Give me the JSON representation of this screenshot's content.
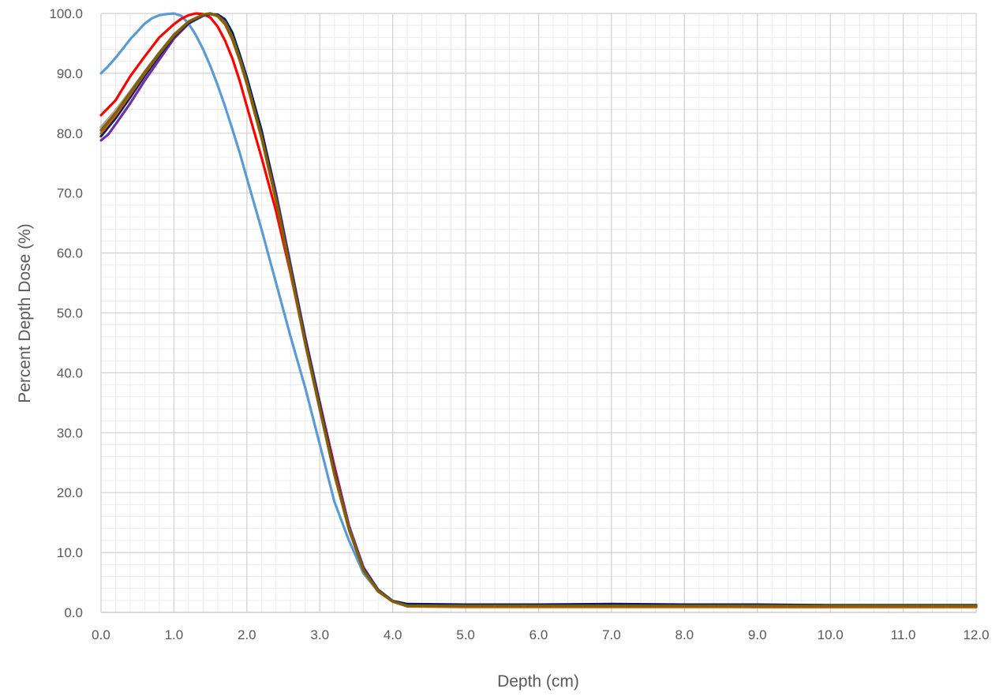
{
  "chart_data": {
    "type": "line",
    "title": "",
    "xlabel": "Depth (cm)",
    "ylabel": "Percent Depth Dose (%)",
    "xlim": [
      0,
      12
    ],
    "ylim": [
      0,
      100
    ],
    "x_ticks": [
      "0.0",
      "1.0",
      "2.0",
      "3.0",
      "4.0",
      "5.0",
      "6.0",
      "7.0",
      "8.0",
      "9.0",
      "10.0",
      "11.0",
      "12.0"
    ],
    "y_ticks": [
      "0.0",
      "10.0",
      "20.0",
      "30.0",
      "40.0",
      "50.0",
      "60.0",
      "70.0",
      "80.0",
      "90.0",
      "100.0"
    ],
    "grid": "major and minor",
    "legend": "none",
    "series": [
      {
        "color": "#5b9bd5",
        "x": [
          0,
          0.1,
          0.2,
          0.3,
          0.4,
          0.5,
          0.6,
          0.7,
          0.8,
          0.9,
          1.0,
          1.1,
          1.2,
          1.3,
          1.4,
          1.5,
          1.6,
          1.7,
          1.8,
          1.9,
          2.0,
          2.2,
          2.4,
          2.6,
          2.8,
          3.0,
          3.2,
          3.4,
          3.6,
          3.8,
          4.0,
          4.2,
          5,
          6,
          7,
          8,
          9,
          10,
          11,
          12
        ],
        "y": [
          90.0,
          91.2,
          92.6,
          94.1,
          95.7,
          97.0,
          98.3,
          99.2,
          99.7,
          99.9,
          100.0,
          99.6,
          98.3,
          96.4,
          94.0,
          91.2,
          88.0,
          84.5,
          80.7,
          76.8,
          72.5,
          64.0,
          55.0,
          46.0,
          37.5,
          28.0,
          18.5,
          12.0,
          6.5,
          3.5,
          1.8,
          1.3,
          1.2,
          1.2,
          1.2,
          1.2,
          1.2,
          1.1,
          1.1,
          1.1
        ]
      },
      {
        "color": "#ff0000",
        "x": [
          0,
          0.2,
          0.4,
          0.6,
          0.8,
          1.0,
          1.1,
          1.2,
          1.3,
          1.4,
          1.5,
          1.6,
          1.7,
          1.8,
          1.9,
          2.0,
          2.2,
          2.4,
          2.6,
          2.8,
          3.0,
          3.2,
          3.4,
          3.6,
          3.8,
          4.0,
          4.2,
          5,
          6,
          7,
          8,
          9,
          10,
          11,
          12
        ],
        "y": [
          83.0,
          85.5,
          89.5,
          92.8,
          96.0,
          98.2,
          99.1,
          99.7,
          100.0,
          99.9,
          99.3,
          97.8,
          95.5,
          92.5,
          88.8,
          84.5,
          76.0,
          67.0,
          56.5,
          45.0,
          35.0,
          24.5,
          14.5,
          7.0,
          3.5,
          1.8,
          1.1,
          1.0,
          1.0,
          1.0,
          1.0,
          0.9,
          0.9,
          0.9,
          0.9
        ]
      },
      {
        "color": "#7030a0",
        "x": [
          0,
          0.1,
          0.2,
          0.4,
          0.6,
          0.8,
          1.0,
          1.2,
          1.4,
          1.5,
          1.6,
          1.7,
          1.8,
          1.9,
          2.0,
          2.2,
          2.4,
          2.6,
          2.8,
          3.0,
          3.2,
          3.4,
          3.6,
          3.8,
          4.0,
          4.2,
          5,
          6,
          7,
          8,
          9,
          10,
          11,
          12
        ],
        "y": [
          78.8,
          79.8,
          81.5,
          85.0,
          88.8,
          92.3,
          95.8,
          98.3,
          99.6,
          99.9,
          99.6,
          98.5,
          96.2,
          93.0,
          89.0,
          80.5,
          70.0,
          58.0,
          46.0,
          35.0,
          24.0,
          14.5,
          7.5,
          3.8,
          1.9,
          1.2,
          1.0,
          1.0,
          1.0,
          1.0,
          1.0,
          1.0,
          1.0,
          1.0
        ]
      },
      {
        "color": "#002060",
        "x": [
          0,
          0.2,
          0.4,
          0.6,
          0.8,
          1.0,
          1.2,
          1.4,
          1.5,
          1.6,
          1.7,
          1.8,
          1.9,
          2.0,
          2.2,
          2.4,
          2.6,
          2.8,
          3.0,
          3.2,
          3.4,
          3.6,
          3.8,
          4.0,
          4.2,
          5,
          6,
          7,
          8,
          9,
          10,
          11,
          12
        ],
        "y": [
          79.5,
          82.5,
          86.0,
          89.6,
          93.0,
          96.1,
          98.4,
          99.7,
          99.9,
          99.8,
          99.0,
          96.8,
          93.2,
          89.3,
          80.5,
          69.5,
          57.5,
          45.5,
          34.5,
          23.5,
          14.0,
          7.2,
          3.7,
          1.9,
          1.4,
          1.3,
          1.3,
          1.4,
          1.3,
          1.3,
          1.2,
          1.2,
          1.2
        ]
      },
      {
        "color": "#a5a5a5",
        "x": [
          0,
          0.2,
          0.4,
          0.6,
          0.8,
          1.0,
          1.2,
          1.4,
          1.5,
          1.6,
          1.7,
          1.8,
          1.9,
          2.0,
          2.2,
          2.4,
          2.6,
          2.8,
          3.0,
          3.2,
          3.4,
          3.6,
          3.8,
          4.0,
          4.2,
          5,
          6,
          7,
          8,
          9,
          10,
          11,
          12
        ],
        "y": [
          81.0,
          83.8,
          87.0,
          90.3,
          93.5,
          96.5,
          98.7,
          99.8,
          100.0,
          99.6,
          98.5,
          96.0,
          92.5,
          88.5,
          79.5,
          69.0,
          57.0,
          45.0,
          34.0,
          23.0,
          14.0,
          7.0,
          3.6,
          1.8,
          1.1,
          1.0,
          1.0,
          1.0,
          1.0,
          1.0,
          1.0,
          1.0,
          1.0
        ]
      },
      {
        "color": "#c55a11",
        "x": [
          0,
          0.2,
          0.4,
          0.6,
          0.8,
          1.0,
          1.2,
          1.4,
          1.5,
          1.6,
          1.7,
          1.8,
          1.9,
          2.0,
          2.2,
          2.4,
          2.6,
          2.8,
          3.0,
          3.2,
          3.4,
          3.6,
          3.8,
          4.0,
          4.2,
          5,
          6,
          7,
          8,
          9,
          10,
          11,
          12
        ],
        "y": [
          80.0,
          83.0,
          86.5,
          90.0,
          93.3,
          96.3,
          98.6,
          99.8,
          100.0,
          99.5,
          98.2,
          95.6,
          92.2,
          88.2,
          79.2,
          68.7,
          56.8,
          44.8,
          33.8,
          23.0,
          13.8,
          6.9,
          3.5,
          1.8,
          1.0,
          0.9,
          0.9,
          0.9,
          0.9,
          0.9,
          0.9,
          0.9,
          0.9
        ]
      },
      {
        "color": "#806000",
        "x": [
          0,
          0.2,
          0.4,
          0.6,
          0.8,
          1.0,
          1.2,
          1.4,
          1.5,
          1.6,
          1.7,
          1.8,
          1.9,
          2.0,
          2.2,
          2.4,
          2.6,
          2.8,
          3.0,
          3.2,
          3.4,
          3.6,
          3.8,
          4.0,
          4.2,
          5,
          6,
          7,
          8,
          9,
          10,
          11,
          12
        ],
        "y": [
          80.5,
          83.4,
          86.8,
          90.2,
          93.4,
          96.4,
          98.6,
          99.8,
          100.0,
          99.6,
          98.4,
          95.9,
          92.4,
          88.4,
          79.5,
          69.0,
          57.0,
          45.0,
          34.0,
          23.2,
          14.0,
          7.0,
          3.6,
          1.8,
          1.1,
          1.1,
          1.1,
          1.1,
          1.1,
          1.1,
          1.1,
          1.1,
          1.1
        ]
      }
    ]
  }
}
